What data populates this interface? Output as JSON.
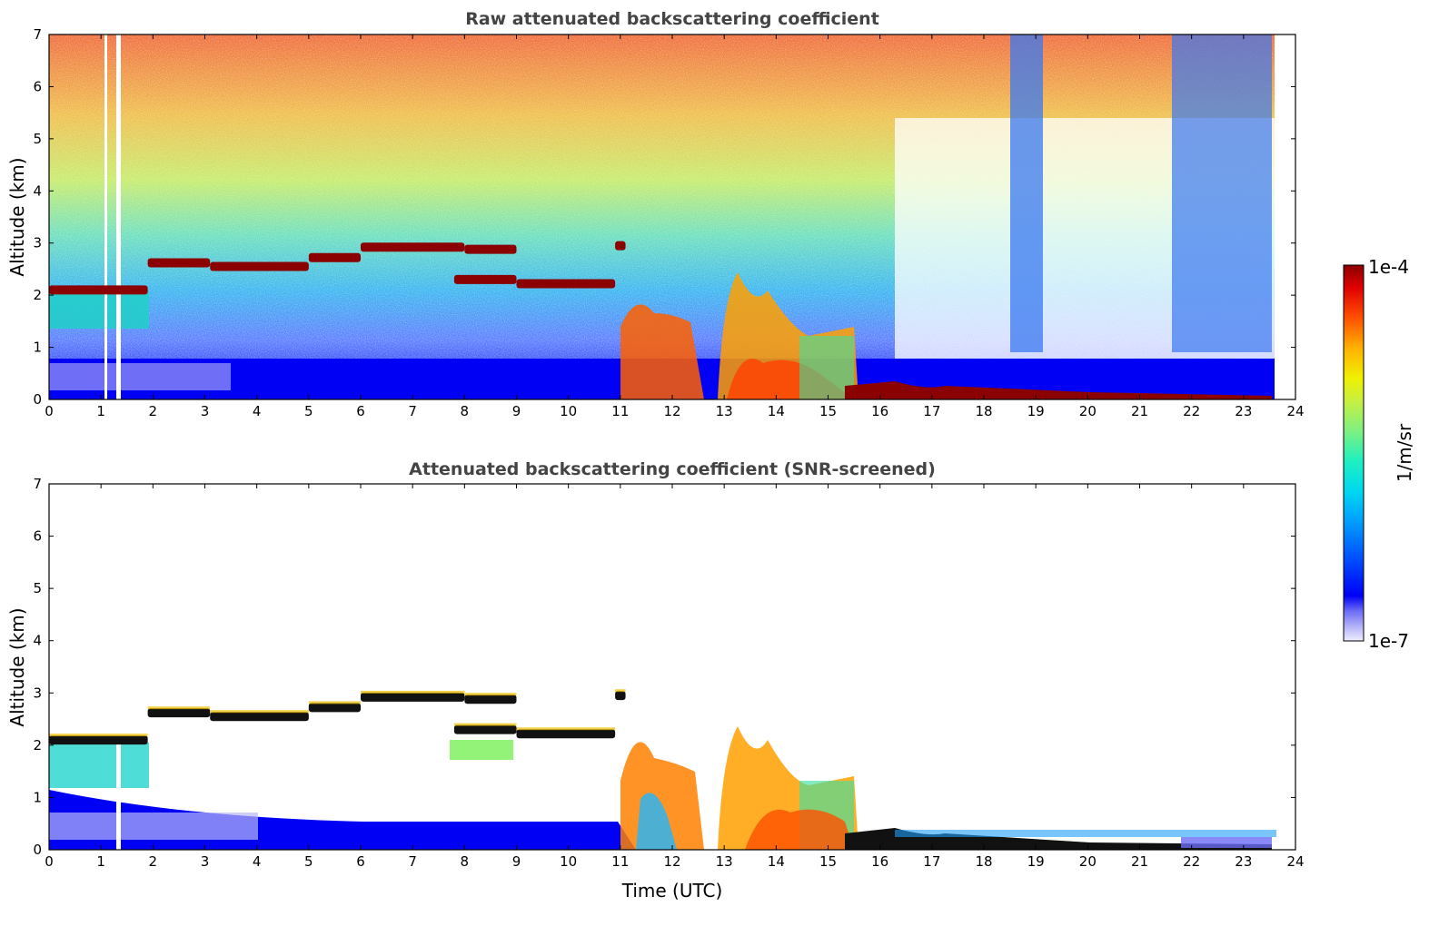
{
  "chart_data": [
    {
      "type": "heatmap",
      "title": "Raw attenuated backscattering coefficient",
      "xlabel": "",
      "ylabel": "Altitude (km)",
      "xlim": [
        0,
        24
      ],
      "ylim": [
        0,
        7
      ],
      "xticks": [
        0,
        1,
        2,
        3,
        4,
        5,
        6,
        7,
        8,
        9,
        10,
        11,
        12,
        13,
        14,
        15,
        16,
        17,
        18,
        19,
        20,
        21,
        22,
        23,
        24
      ],
      "yticks": [
        0,
        1,
        2,
        3,
        4,
        5,
        6,
        7
      ],
      "grid": false,
      "cloud_layers": [
        {
          "x": [
            0.0,
            1.9
          ],
          "y": 2.1
        },
        {
          "x": [
            1.9,
            3.1
          ],
          "y": 2.62
        },
        {
          "x": [
            3.1,
            5.0
          ],
          "y": 2.55
        },
        {
          "x": [
            5.0,
            6.0
          ],
          "y": 2.72
        },
        {
          "x": [
            6.0,
            8.0
          ],
          "y": 2.92
        },
        {
          "x": [
            8.0,
            9.0
          ],
          "y": 2.88
        },
        {
          "x": [
            7.8,
            9.0
          ],
          "y": 2.3
        },
        {
          "x": [
            9.0,
            10.9
          ],
          "y": 2.22
        },
        {
          "x": [
            10.9,
            11.1
          ],
          "y": 2.95
        }
      ]
    },
    {
      "type": "heatmap",
      "title": "Attenuated backscattering coefficient (SNR-screened)",
      "xlabel": "Time (UTC)",
      "ylabel": "Altitude (km)",
      "xlim": [
        0,
        24
      ],
      "ylim": [
        0,
        7
      ],
      "xticks": [
        0,
        1,
        2,
        3,
        4,
        5,
        6,
        7,
        8,
        9,
        10,
        11,
        12,
        13,
        14,
        15,
        16,
        17,
        18,
        19,
        20,
        21,
        22,
        23,
        24
      ],
      "yticks": [
        0,
        1,
        2,
        3,
        4,
        5,
        6,
        7
      ],
      "grid": false
    }
  ],
  "colorbar": {
    "label": "1/m/sr",
    "max_label": "1e-4",
    "min_label": "1e-7",
    "scale": "log",
    "colormap": [
      "#eeeeff",
      "#b0b0f8",
      "#6b6bf5",
      "#0000f5",
      "#0030ff",
      "#0070ff",
      "#00b4ff",
      "#00e0ea",
      "#30f0b0",
      "#80f080",
      "#c0f040",
      "#f0f000",
      "#ffc000",
      "#ff8000",
      "#ff3000",
      "#e00000",
      "#8b0000"
    ]
  }
}
